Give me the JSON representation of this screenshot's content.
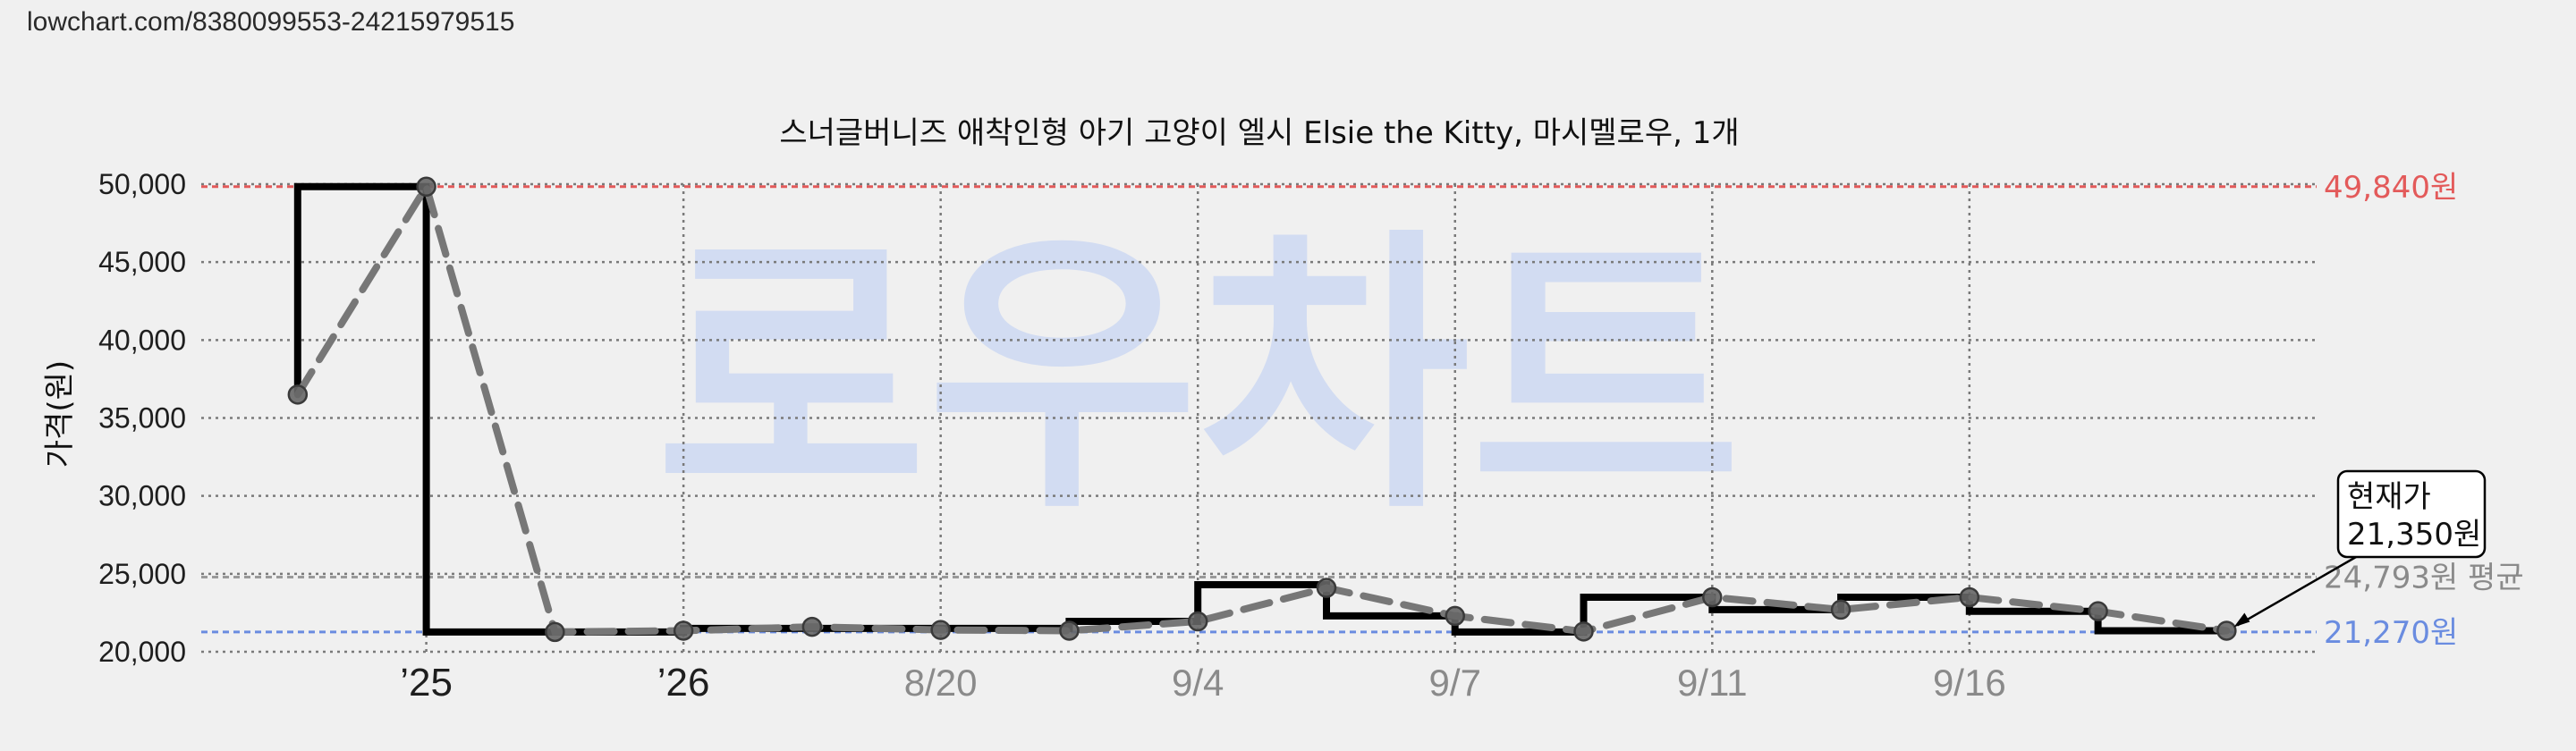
{
  "header": {
    "url": "lowchart.com/8380099553-24215979515"
  },
  "watermark": "로우차트",
  "colors": {
    "background": "#f0f0f0",
    "max_line": "#e35a5a",
    "min_line": "#6a8ce0",
    "avg_line": "#9a9a9a",
    "step_line": "#000000",
    "dashed_line": "#777777",
    "watermark": "#c9d6f3"
  },
  "chart_data": {
    "type": "line",
    "title": "스너글버니즈 애착인형 아기 고양이 엘시 Elsie the Kitty, 마시멜로우, 1개",
    "ylabel": "가격(원)",
    "ylim": [
      20000,
      50000
    ],
    "y_ticks": [
      20000,
      25000,
      30000,
      35000,
      40000,
      45000,
      50000
    ],
    "y_tick_labels": [
      "20,000",
      "25,000",
      "30,000",
      "35,000",
      "40,000",
      "45,000",
      "50,000"
    ],
    "x_ticks": [
      {
        "label": "’25",
        "index": 1,
        "year": true
      },
      {
        "label": "’26",
        "index": 3,
        "year": true
      },
      {
        "label": "8/20",
        "index": 5,
        "year": false
      },
      {
        "label": "9/4",
        "index": 7,
        "year": false
      },
      {
        "label": "9/7",
        "index": 9,
        "year": false
      },
      {
        "label": "9/11",
        "index": 11,
        "year": false
      },
      {
        "label": "9/16",
        "index": 13,
        "year": false
      }
    ],
    "series": [
      {
        "style": "step",
        "points": [
          [
            0,
            36500
          ],
          [
            0,
            49840
          ],
          [
            1,
            49840
          ],
          [
            1,
            21270
          ],
          [
            3,
            21270
          ],
          [
            3,
            21500
          ],
          [
            6,
            21500
          ],
          [
            6,
            21950
          ],
          [
            7,
            21950
          ],
          [
            7,
            24300
          ],
          [
            8,
            24300
          ],
          [
            8,
            22300
          ],
          [
            9,
            22300
          ],
          [
            9,
            21270
          ],
          [
            10,
            21270
          ],
          [
            10,
            23500
          ],
          [
            11,
            23500
          ],
          [
            11,
            22700
          ],
          [
            12,
            22700
          ],
          [
            12,
            23500
          ],
          [
            13,
            23500
          ],
          [
            13,
            22600
          ],
          [
            14,
            22600
          ],
          [
            14,
            21350
          ],
          [
            15,
            21350
          ]
        ]
      },
      {
        "style": "dashed",
        "points": [
          [
            0,
            36500
          ],
          [
            1,
            49840
          ],
          [
            2,
            21270
          ],
          [
            3,
            21350
          ],
          [
            4,
            21600
          ],
          [
            5,
            21400
          ],
          [
            6,
            21350
          ],
          [
            7,
            21950
          ],
          [
            8,
            24100
          ],
          [
            9,
            22300
          ],
          [
            10,
            21300
          ],
          [
            11,
            23500
          ],
          [
            12,
            22700
          ],
          [
            13,
            23500
          ],
          [
            14,
            22600
          ],
          [
            15,
            21350
          ]
        ]
      }
    ],
    "markers": [
      [
        0,
        36500
      ],
      [
        1,
        49840
      ],
      [
        2,
        21270
      ],
      [
        3,
        21350
      ],
      [
        4,
        21600
      ],
      [
        5,
        21400
      ],
      [
        6,
        21350
      ],
      [
        7,
        21950
      ],
      [
        8,
        24100
      ],
      [
        9,
        22300
      ],
      [
        10,
        21300
      ],
      [
        11,
        23500
      ],
      [
        12,
        22700
      ],
      [
        13,
        23500
      ],
      [
        14,
        22600
      ],
      [
        15,
        21350
      ]
    ],
    "max": {
      "value": 49840,
      "label": "49,840원"
    },
    "min": {
      "value": 21270,
      "label": "21,270원"
    },
    "avg": {
      "value": 24793,
      "label": "24,793원 평균"
    },
    "current": {
      "value": 21350,
      "line1": "현재가",
      "line2": "21,350원"
    },
    "x_domain": [
      -0.75,
      15.7
    ],
    "grid": true
  }
}
